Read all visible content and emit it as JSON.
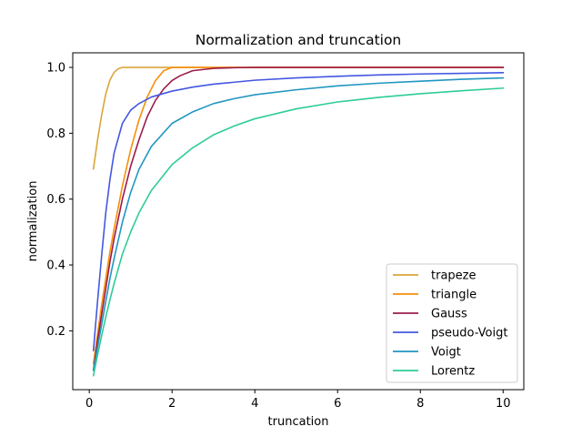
{
  "chart_data": {
    "type": "line",
    "title": "Normalization and truncation",
    "xlabel": "truncation",
    "ylabel": "normalization",
    "xlim": [
      -0.3995,
      10.4995
    ],
    "ylim": [
      0.0213,
      1.0443
    ],
    "xticks": [
      0,
      2,
      4,
      6,
      8,
      10
    ],
    "yticks": [
      0.2,
      0.4,
      0.6,
      0.8,
      1.0
    ],
    "xtick_labels": [
      "0",
      "2",
      "4",
      "6",
      "8",
      "10"
    ],
    "ytick_labels": [
      "0.2",
      "0.4",
      "0.6",
      "0.8",
      "1.0"
    ],
    "grid": false,
    "legend_position": "lower-right",
    "series": [
      {
        "name": "trapeze",
        "color": "#DAA638",
        "x": [
          0.1,
          0.2,
          0.3,
          0.4,
          0.5,
          0.6,
          0.7,
          0.8,
          1.0,
          1.5,
          2,
          3,
          4,
          6,
          8,
          10
        ],
        "y": [
          0.692,
          0.78,
          0.856,
          0.92,
          0.962,
          0.985,
          0.996,
          1.0,
          1.0,
          1.0,
          1.0,
          1.0,
          1.0,
          1.0,
          1.0,
          1.0
        ]
      },
      {
        "name": "triangle",
        "color": "#F78F0B",
        "x": [
          0.1,
          0.2,
          0.3,
          0.4,
          0.5,
          0.6,
          0.8,
          1.0,
          1.2,
          1.4,
          1.6,
          1.8,
          2.0,
          3,
          4,
          6,
          8,
          10
        ],
        "y": [
          0.1,
          0.19,
          0.28,
          0.36,
          0.44,
          0.51,
          0.64,
          0.75,
          0.84,
          0.91,
          0.96,
          0.99,
          1.0,
          1.0,
          1.0,
          1.0,
          1.0,
          1.0
        ]
      },
      {
        "name": "Gauss",
        "color": "#9B1B4B",
        "x": [
          0.1,
          0.2,
          0.3,
          0.4,
          0.5,
          0.6,
          0.8,
          1.0,
          1.2,
          1.4,
          1.6,
          1.8,
          2.0,
          2.2,
          2.5,
          3.0,
          3.5,
          4,
          6,
          8,
          10
        ],
        "y": [
          0.08,
          0.17,
          0.25,
          0.33,
          0.41,
          0.48,
          0.6,
          0.7,
          0.78,
          0.85,
          0.9,
          0.935,
          0.96,
          0.975,
          0.99,
          0.997,
          0.999,
          1.0,
          1.0,
          1.0,
          1.0
        ]
      },
      {
        "name": "pseudo-Voigt",
        "color": "#4457E0",
        "x": [
          0.1,
          0.2,
          0.3,
          0.4,
          0.5,
          0.6,
          0.8,
          1.0,
          1.2,
          1.5,
          2,
          2.5,
          3,
          4,
          5,
          6,
          7,
          8,
          9,
          10
        ],
        "y": [
          0.14,
          0.29,
          0.43,
          0.56,
          0.66,
          0.74,
          0.83,
          0.87,
          0.89,
          0.91,
          0.928,
          0.94,
          0.949,
          0.961,
          0.968,
          0.973,
          0.977,
          0.98,
          0.982,
          0.984
        ]
      },
      {
        "name": "Voigt",
        "color": "#2196C0",
        "x": [
          0.1,
          0.2,
          0.3,
          0.4,
          0.5,
          0.6,
          0.8,
          1.0,
          1.2,
          1.5,
          2,
          2.5,
          3,
          3.5,
          4,
          5,
          6,
          7,
          8,
          9,
          10
        ],
        "y": [
          0.08,
          0.15,
          0.22,
          0.29,
          0.36,
          0.42,
          0.53,
          0.62,
          0.69,
          0.76,
          0.83,
          0.865,
          0.89,
          0.905,
          0.917,
          0.932,
          0.944,
          0.952,
          0.958,
          0.964,
          0.968
        ]
      },
      {
        "name": "Lorentz",
        "color": "#2ECC98",
        "x": [
          0.1,
          0.2,
          0.3,
          0.4,
          0.5,
          0.6,
          0.8,
          1.0,
          1.2,
          1.5,
          2,
          2.5,
          3,
          3.5,
          4,
          5,
          6,
          7,
          8,
          9,
          10
        ],
        "y": [
          0.064,
          0.127,
          0.186,
          0.243,
          0.295,
          0.344,
          0.433,
          0.5,
          0.558,
          0.626,
          0.705,
          0.756,
          0.795,
          0.822,
          0.844,
          0.874,
          0.895,
          0.909,
          0.92,
          0.929,
          0.937
        ]
      }
    ]
  }
}
